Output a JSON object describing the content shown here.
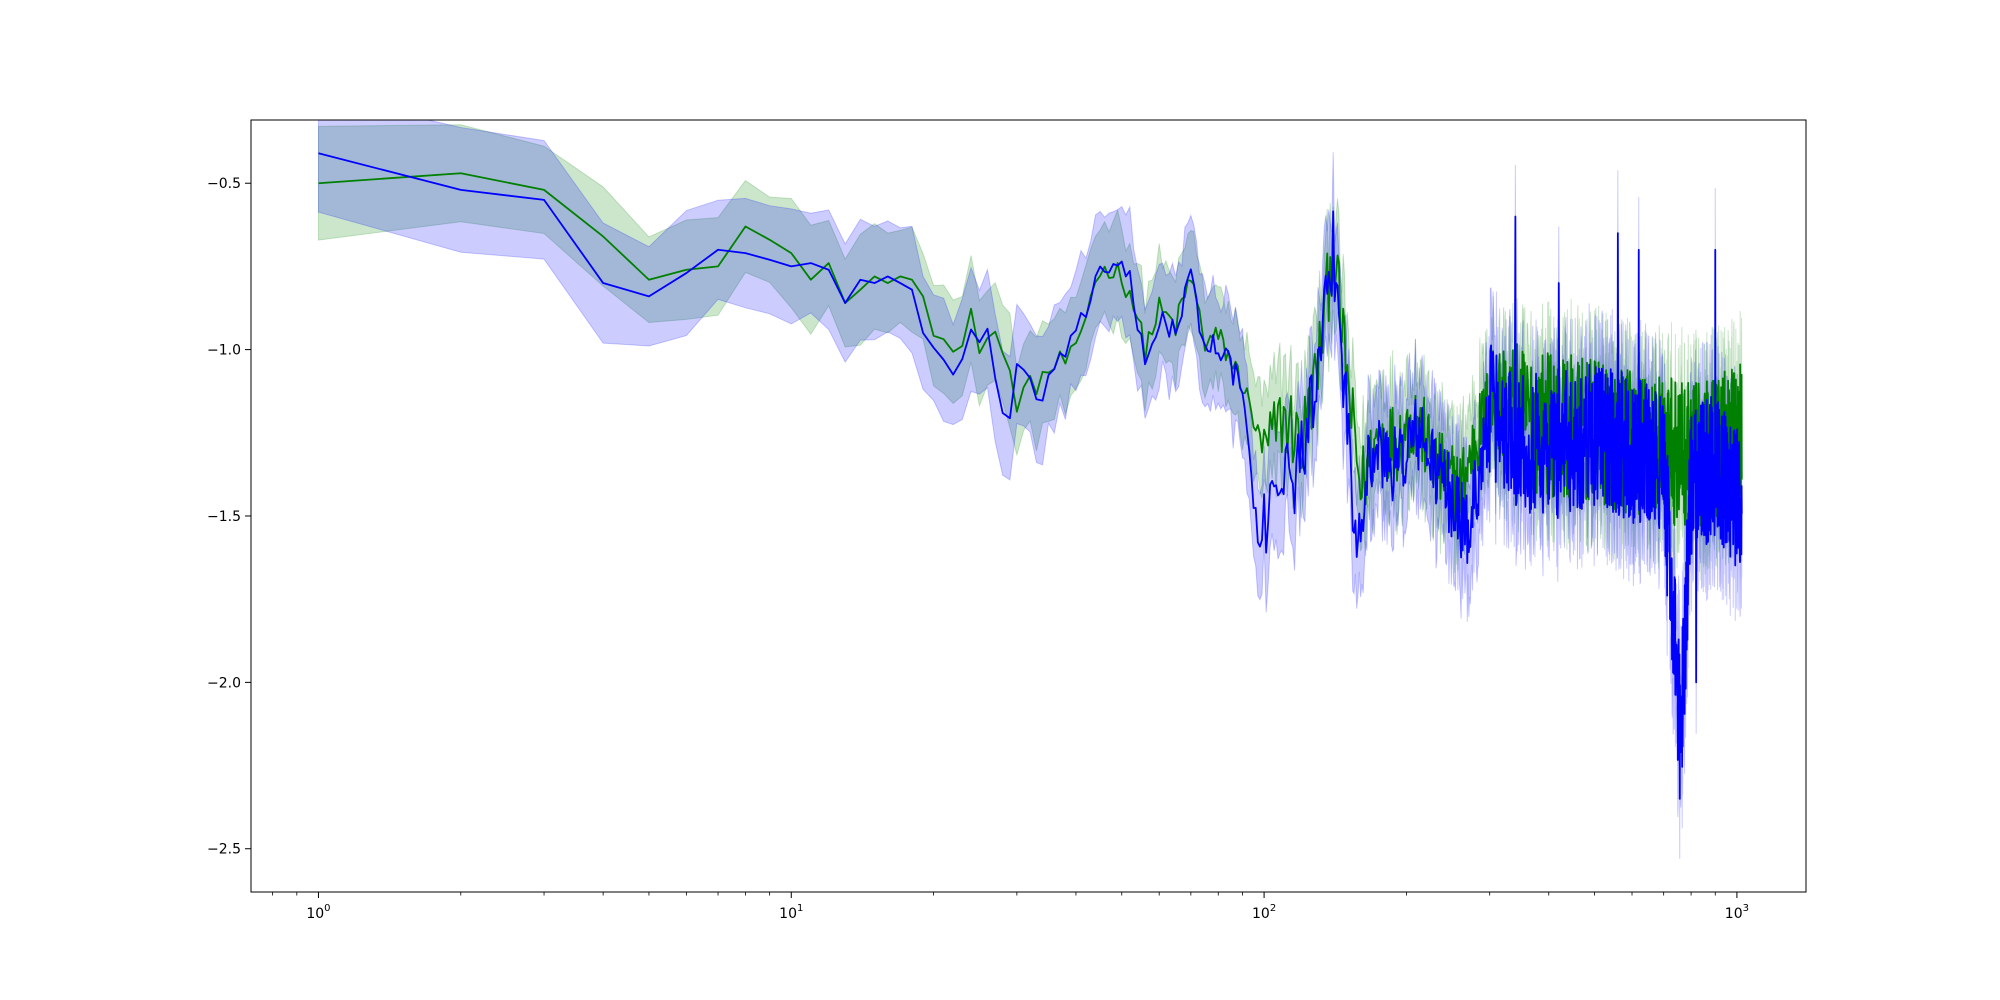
{
  "chart_data": {
    "type": "line",
    "title": "",
    "xlabel": "",
    "ylabel": "",
    "xscale": "log",
    "xlim": [
      0.72,
      1400
    ],
    "ylim": [
      -2.63,
      -0.31
    ],
    "grid": false,
    "legend": "none",
    "x_ticks": [
      {
        "value": 1,
        "base": "10",
        "exp": "0"
      },
      {
        "value": 10,
        "base": "10",
        "exp": "1"
      },
      {
        "value": 100,
        "base": "10",
        "exp": "2"
      },
      {
        "value": 1000,
        "base": "10",
        "exp": "3"
      }
    ],
    "y_ticks": [
      {
        "value": -0.5,
        "label": "−0.5"
      },
      {
        "value": -1.0,
        "label": "−1.0"
      },
      {
        "value": -1.5,
        "label": "−1.5"
      },
      {
        "value": -2.0,
        "label": "−2.0"
      },
      {
        "value": -2.5,
        "label": "−2.5"
      }
    ],
    "series": [
      {
        "color": "#008000",
        "band_color": "#008000",
        "band_opacity": 0.2,
        "band_halfwidth": 0.15,
        "anchors": [
          [
            1,
            -0.5
          ],
          [
            2,
            -0.47
          ],
          [
            3,
            -0.52
          ],
          [
            4,
            -0.66
          ],
          [
            5,
            -0.79
          ],
          [
            6,
            -0.76
          ],
          [
            7,
            -0.75
          ],
          [
            8,
            -0.63
          ],
          [
            9,
            -0.67
          ],
          [
            10,
            -0.71
          ],
          [
            11,
            -0.79
          ],
          [
            12,
            -0.74
          ],
          [
            13,
            -0.86
          ],
          [
            14,
            -0.82
          ],
          [
            15,
            -0.78
          ],
          [
            16,
            -0.8
          ],
          [
            17,
            -0.78
          ],
          [
            18,
            -0.79
          ],
          [
            19,
            -0.84
          ],
          [
            20,
            -0.92
          ],
          [
            21,
            -0.93
          ],
          [
            22,
            -1.01
          ],
          [
            23,
            -1.0
          ],
          [
            24,
            -0.91
          ],
          [
            25,
            -0.98
          ],
          [
            27,
            -0.95
          ],
          [
            30,
            -1.15
          ],
          [
            33,
            -1.1
          ],
          [
            36,
            -1.05
          ],
          [
            40,
            -1.02
          ],
          [
            44,
            -0.78
          ],
          [
            48,
            -0.75
          ],
          [
            52,
            -0.82
          ],
          [
            56,
            -1.0
          ],
          [
            60,
            -0.88
          ],
          [
            65,
            -0.93
          ],
          [
            70,
            -0.78
          ],
          [
            75,
            -0.98
          ],
          [
            80,
            -0.96
          ],
          [
            90,
            -1.1
          ],
          [
            100,
            -1.32
          ],
          [
            110,
            -1.2
          ],
          [
            120,
            -1.28
          ],
          [
            130,
            -1.05
          ],
          [
            140,
            -0.69
          ],
          [
            150,
            -1.1
          ],
          [
            160,
            -1.42
          ],
          [
            175,
            -1.25
          ],
          [
            190,
            -1.28
          ],
          [
            210,
            -1.2
          ],
          [
            230,
            -1.35
          ],
          [
            260,
            -1.42
          ],
          [
            300,
            -1.15
          ],
          [
            340,
            -1.2
          ],
          [
            400,
            -1.22
          ],
          [
            500,
            -1.25
          ],
          [
            600,
            -1.28
          ],
          [
            700,
            -1.3
          ],
          [
            800,
            -1.32
          ],
          [
            900,
            -1.3
          ],
          [
            1000,
            -1.25
          ]
        ]
      },
      {
        "color": "#0000ff",
        "band_color": "#0000ff",
        "band_opacity": 0.2,
        "band_halfwidth": 0.17,
        "anchors": [
          [
            1,
            -0.41
          ],
          [
            2,
            -0.52
          ],
          [
            3,
            -0.55
          ],
          [
            4,
            -0.8
          ],
          [
            5,
            -0.84
          ],
          [
            6,
            -0.77
          ],
          [
            7,
            -0.7
          ],
          [
            8,
            -0.71
          ],
          [
            9,
            -0.73
          ],
          [
            10,
            -0.75
          ],
          [
            11,
            -0.74
          ],
          [
            12,
            -0.76
          ],
          [
            13,
            -0.86
          ],
          [
            14,
            -0.79
          ],
          [
            15,
            -0.8
          ],
          [
            16,
            -0.78
          ],
          [
            17,
            -0.8
          ],
          [
            18,
            -0.82
          ],
          [
            19,
            -0.95
          ],
          [
            20,
            -0.98
          ],
          [
            21,
            -1.03
          ],
          [
            22,
            -1.08
          ],
          [
            23,
            -1.02
          ],
          [
            24,
            -0.96
          ],
          [
            26,
            -0.93
          ],
          [
            28,
            -1.22
          ],
          [
            29,
            -1.2
          ],
          [
            30,
            -1.05
          ],
          [
            33,
            -1.16
          ],
          [
            36,
            -1.05
          ],
          [
            40,
            -0.98
          ],
          [
            44,
            -0.78
          ],
          [
            48,
            -0.73
          ],
          [
            52,
            -0.8
          ],
          [
            56,
            -1.05
          ],
          [
            60,
            -0.9
          ],
          [
            65,
            -0.95
          ],
          [
            70,
            -0.78
          ],
          [
            75,
            -1.0
          ],
          [
            80,
            -0.98
          ],
          [
            90,
            -1.12
          ],
          [
            98,
            -1.63
          ],
          [
            105,
            -1.35
          ],
          [
            115,
            -1.4
          ],
          [
            130,
            -1.1
          ],
          [
            140,
            -0.7
          ],
          [
            150,
            -1.2
          ],
          [
            155,
            -1.55
          ],
          [
            170,
            -1.3
          ],
          [
            190,
            -1.35
          ],
          [
            210,
            -1.25
          ],
          [
            240,
            -1.4
          ],
          [
            270,
            -1.55
          ],
          [
            300,
            -1.2
          ],
          [
            340,
            -1.25
          ],
          [
            400,
            -1.3
          ],
          [
            500,
            -1.25
          ],
          [
            600,
            -1.3
          ],
          [
            700,
            -1.35
          ],
          [
            760,
            -2.17
          ],
          [
            800,
            -1.4
          ],
          [
            900,
            -1.35
          ],
          [
            1000,
            -1.45
          ]
        ],
        "spikes": [
          [
            340,
            -0.6
          ],
          [
            420,
            -0.8
          ],
          [
            560,
            -0.65
          ],
          [
            620,
            -0.7
          ],
          [
            760,
            -2.17
          ],
          [
            820,
            -2.0
          ],
          [
            900,
            -0.7
          ]
        ]
      }
    ]
  }
}
